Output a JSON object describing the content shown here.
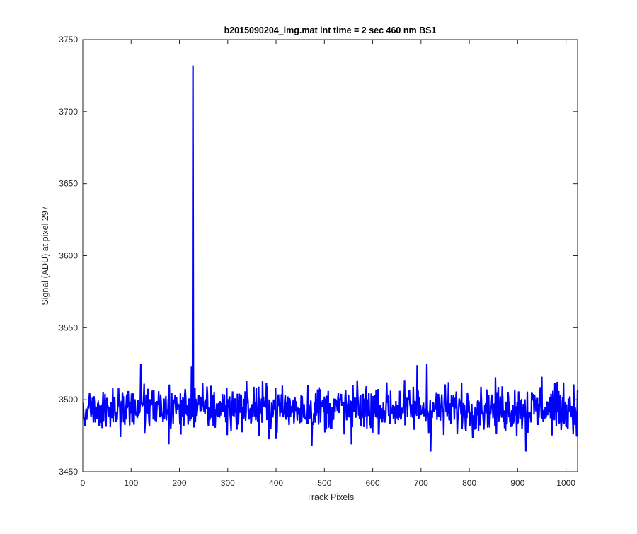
{
  "chart_data": {
    "type": "line",
    "title": "b2015090204_img.mat int time = 2 sec  460 nm BS1",
    "xlabel": "Track Pixels",
    "ylabel": "Signal (ADU) at pixel 297",
    "xlim": [
      0,
      1024
    ],
    "ylim": [
      3450,
      3750
    ],
    "xticks": [
      0,
      100,
      200,
      300,
      400,
      500,
      600,
      700,
      800,
      900,
      1000
    ],
    "yticks": [
      3450,
      3500,
      3550,
      3600,
      3650,
      3700,
      3750
    ],
    "grid": false,
    "legend": "none",
    "series": [
      {
        "color": "#0000ff",
        "x_start": 1,
        "x_step": 1,
        "baseline": 3494,
        "noise_range": [
          3464,
          3526
        ],
        "spike": {
          "x": 228,
          "y": 3732
        },
        "notable_points": [
          {
            "x": 120,
            "y": 3525
          },
          {
            "x": 178,
            "y": 3469
          },
          {
            "x": 225,
            "y": 3523
          },
          {
            "x": 474,
            "y": 3468
          },
          {
            "x": 556,
            "y": 3469
          },
          {
            "x": 692,
            "y": 3524
          },
          {
            "x": 712,
            "y": 3525
          },
          {
            "x": 720,
            "y": 3464
          },
          {
            "x": 917,
            "y": 3464
          },
          {
            "x": 950,
            "y": 3516
          },
          {
            "x": 1015,
            "y": 3476
          }
        ]
      }
    ]
  }
}
